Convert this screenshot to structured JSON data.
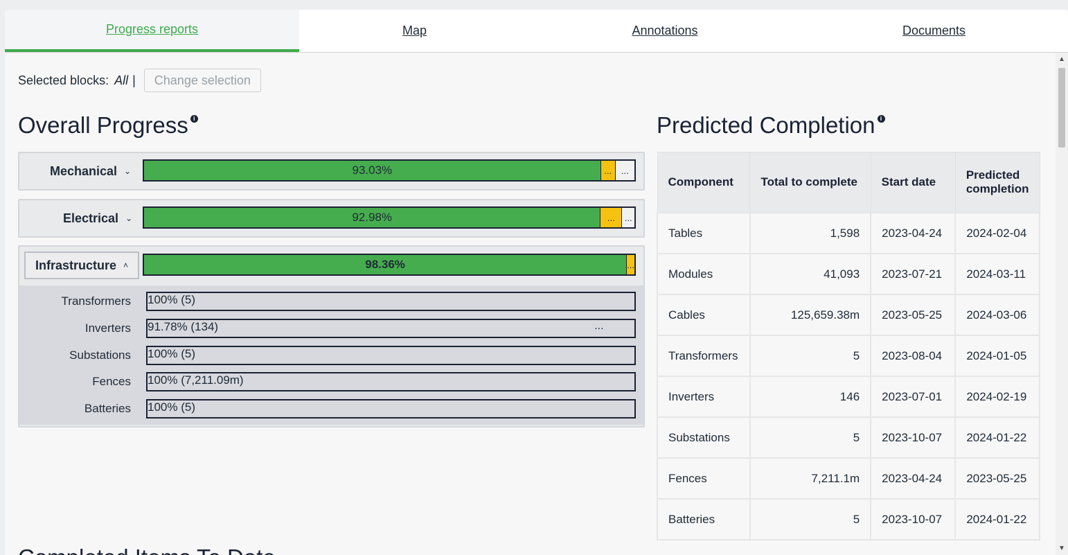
{
  "tabs": [
    {
      "label": "Progress reports",
      "active": true
    },
    {
      "label": "Map"
    },
    {
      "label": "Annotations"
    },
    {
      "label": "Documents"
    }
  ],
  "selection": {
    "label": "Selected blocks:",
    "value": "All",
    "separator": "|",
    "change_button": "Change selection"
  },
  "overall": {
    "title": "Overall Progress",
    "groups": [
      {
        "name": "Mechanical",
        "percent": "93.03%",
        "progress": 93.03,
        "more": "..."
      },
      {
        "name": "Electrical",
        "percent": "92.98%",
        "progress": 92.98,
        "more": "..."
      },
      {
        "name": "Infrastructure",
        "percent": "98.36%",
        "progress": 98.36,
        "more": "...",
        "items": [
          {
            "name": "Transformers",
            "label": "100% (5)",
            "progress": 100
          },
          {
            "name": "Inverters",
            "label": "91.78% (134)",
            "progress": 91.78,
            "more": "..."
          },
          {
            "name": "Substations",
            "label": "100% (5)",
            "progress": 100
          },
          {
            "name": "Fences",
            "label": "100% (7,211.09m)",
            "progress": 100
          },
          {
            "name": "Batteries",
            "label": "100% (5)",
            "progress": 100
          }
        ]
      }
    ]
  },
  "predicted": {
    "title": "Predicted Completion",
    "headers": [
      "Component",
      "Total to complete",
      "Start date",
      "Predicted completion"
    ],
    "rows": [
      [
        "Tables",
        "1,598",
        "2023-04-24",
        "2024-02-04"
      ],
      [
        "Modules",
        "41,093",
        "2023-07-21",
        "2024-03-11"
      ],
      [
        "Cables",
        "125,659.38m",
        "2023-05-25",
        "2024-03-06"
      ],
      [
        "Transformers",
        "5",
        "2023-08-04",
        "2024-01-05"
      ],
      [
        "Inverters",
        "146",
        "2023-07-01",
        "2024-02-19"
      ],
      [
        "Substations",
        "5",
        "2023-10-07",
        "2024-01-22"
      ],
      [
        "Fences",
        "7,211.1m",
        "2023-04-24",
        "2023-05-25"
      ],
      [
        "Batteries",
        "5",
        "2023-10-07",
        "2024-01-22"
      ]
    ]
  },
  "info_icon": "i",
  "next_section_title": "Completed Items To Date",
  "colors": {
    "accent": "#3daa4b",
    "progress": "#46ad4e",
    "warning": "#f5c211"
  }
}
